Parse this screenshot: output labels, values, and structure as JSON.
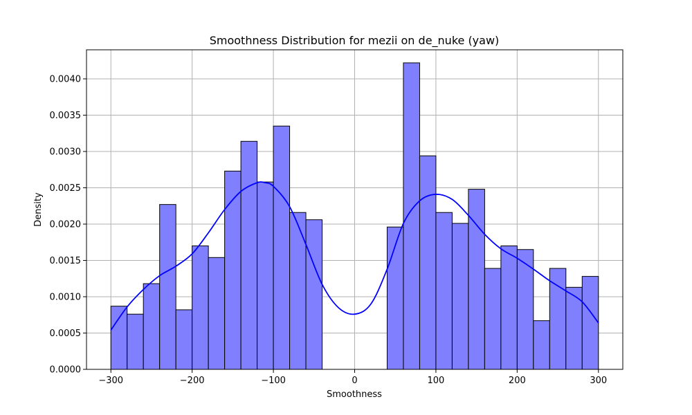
{
  "chart_data": {
    "type": "bar",
    "subtype": "histogram-with-kde",
    "title": "Smoothness Distribution for mezii on de_nuke (yaw)",
    "xlabel": "Smoothness",
    "ylabel": "Density",
    "xlim": [
      -330,
      330
    ],
    "ylim": [
      0,
      0.0044
    ],
    "x_ticks": [
      -300,
      -200,
      -100,
      0,
      100,
      200,
      300
    ],
    "x_tick_labels": [
      "−300",
      "−200",
      "−100",
      "0",
      "100",
      "200",
      "300"
    ],
    "y_ticks": [
      0,
      0.0005,
      0.001,
      0.0015,
      0.002,
      0.0025,
      0.003,
      0.0035,
      0.004
    ],
    "y_tick_labels": [
      "0.0000",
      "0.0005",
      "0.0010",
      "0.0015",
      "0.0020",
      "0.0025",
      "0.0030",
      "0.0035",
      "0.0040"
    ],
    "grid": true,
    "bin_width": 20,
    "bins": [
      {
        "x0": -300,
        "x1": -280,
        "density": 0.00087
      },
      {
        "x0": -280,
        "x1": -260,
        "density": 0.00076
      },
      {
        "x0": -260,
        "x1": -240,
        "density": 0.00118
      },
      {
        "x0": -240,
        "x1": -220,
        "density": 0.00227
      },
      {
        "x0": -220,
        "x1": -200,
        "density": 0.00082
      },
      {
        "x0": -200,
        "x1": -180,
        "density": 0.0017
      },
      {
        "x0": -180,
        "x1": -160,
        "density": 0.00154
      },
      {
        "x0": -160,
        "x1": -140,
        "density": 0.00273
      },
      {
        "x0": -140,
        "x1": -120,
        "density": 0.00314
      },
      {
        "x0": -120,
        "x1": -100,
        "density": 0.00258
      },
      {
        "x0": -100,
        "x1": -80,
        "density": 0.00335
      },
      {
        "x0": -80,
        "x1": -60,
        "density": 0.00216
      },
      {
        "x0": -60,
        "x1": -40,
        "density": 0.00206
      },
      {
        "x0": 40,
        "x1": 60,
        "density": 0.00196
      },
      {
        "x0": 60,
        "x1": 80,
        "density": 0.00422
      },
      {
        "x0": 80,
        "x1": 100,
        "density": 0.00294
      },
      {
        "x0": 100,
        "x1": 120,
        "density": 0.00216
      },
      {
        "x0": 120,
        "x1": 140,
        "density": 0.00201
      },
      {
        "x0": 140,
        "x1": 160,
        "density": 0.00248
      },
      {
        "x0": 160,
        "x1": 180,
        "density": 0.00139
      },
      {
        "x0": 180,
        "x1": 200,
        "density": 0.0017
      },
      {
        "x0": 200,
        "x1": 220,
        "density": 0.00165
      },
      {
        "x0": 220,
        "x1": 240,
        "density": 0.00067
      },
      {
        "x0": 240,
        "x1": 260,
        "density": 0.00139
      },
      {
        "x0": 260,
        "x1": 280,
        "density": 0.00113
      },
      {
        "x0": 280,
        "x1": 300,
        "density": 0.00128
      }
    ],
    "kde": {
      "x": [
        -300,
        -280,
        -260,
        -240,
        -220,
        -200,
        -180,
        -160,
        -140,
        -120,
        -110,
        -100,
        -80,
        -60,
        -40,
        -20,
        0,
        20,
        40,
        60,
        80,
        100,
        120,
        140,
        160,
        180,
        200,
        220,
        240,
        260,
        280,
        300
      ],
      "y": [
        0.00054,
        0.00086,
        0.0011,
        0.00129,
        0.00142,
        0.00159,
        0.00188,
        0.0022,
        0.00245,
        0.00257,
        0.00257,
        0.00252,
        0.00224,
        0.00172,
        0.00117,
        0.00085,
        0.00076,
        0.0009,
        0.00138,
        0.00201,
        0.00232,
        0.00241,
        0.00234,
        0.00212,
        0.00186,
        0.00166,
        0.00153,
        0.00138,
        0.00122,
        0.00108,
        0.00093,
        0.00064
      ]
    },
    "colors": {
      "bar_fill": "#8080ff",
      "bar_edge": "#000000",
      "kde_line": "#0000ff",
      "grid": "#b0b0b0"
    }
  }
}
